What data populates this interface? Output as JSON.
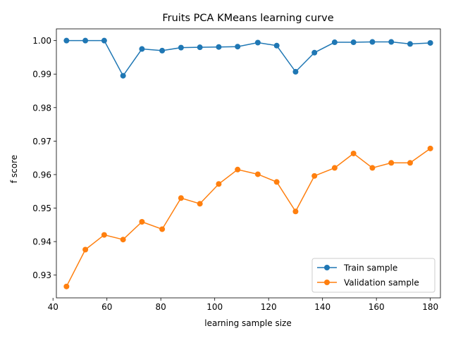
{
  "chart_data": {
    "type": "line",
    "title": "Fruits PCA KMeans learning curve",
    "xlabel": "learning sample size",
    "ylabel": "f score",
    "xlim": [
      41.25,
      183.75
    ],
    "ylim": [
      0.9232,
      1.0035
    ],
    "xticks": [
      40,
      60,
      80,
      100,
      120,
      140,
      160,
      180
    ],
    "xtick_labels": [
      "40",
      "60",
      "80",
      "100",
      "120",
      "140",
      "160",
      "180"
    ],
    "yticks": [
      0.93,
      0.94,
      0.95,
      0.96,
      0.97,
      0.98,
      0.99,
      1.0
    ],
    "ytick_labels": [
      "0.93",
      "0.94",
      "0.95",
      "0.96",
      "0.97",
      "0.98",
      "0.99",
      "1.00"
    ],
    "grid": false,
    "legend_position": "lower-right",
    "x": [
      45,
      52,
      59,
      66,
      73,
      80.5,
      87.5,
      94.5,
      101.5,
      108.5,
      116,
      123,
      130,
      137,
      144.5,
      151.5,
      158.5,
      165.5,
      172.5,
      180
    ],
    "series": [
      {
        "name": "Train sample",
        "color": "#1f77b4",
        "values": [
          1.0,
          1.0,
          1.0,
          0.9895,
          0.9975,
          0.997,
          0.9979,
          0.998,
          0.9981,
          0.9982,
          0.9994,
          0.9985,
          0.9907,
          0.9964,
          0.9995,
          0.9995,
          0.9996,
          0.9996,
          0.999,
          0.9993
        ]
      },
      {
        "name": "Validation sample",
        "color": "#ff7f0e",
        "values": [
          0.9266,
          0.9376,
          0.942,
          0.9406,
          0.9459,
          0.9437,
          0.953,
          0.9513,
          0.9572,
          0.9615,
          0.9601,
          0.9578,
          0.949,
          0.9596,
          0.962,
          0.9663,
          0.962,
          0.9635,
          0.9635,
          0.9678
        ]
      }
    ]
  }
}
